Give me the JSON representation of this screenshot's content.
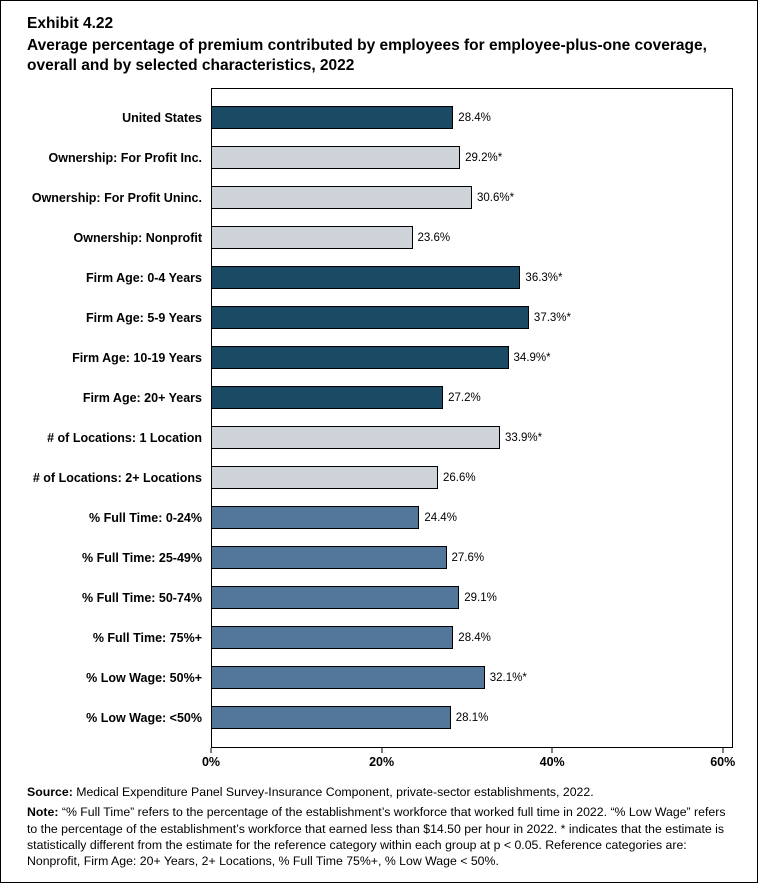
{
  "header": {
    "exhibit": "Exhibit 4.22",
    "title": "Average percentage of premium contributed by employees for employee-plus-one coverage, overall and by selected characteristics, 2022"
  },
  "chart_data": {
    "type": "bar",
    "orientation": "horizontal",
    "title": "Average percentage of premium contributed by employees for employee-plus-one coverage, overall and by selected characteristics, 2022",
    "grid": false,
    "xlim": [
      0,
      61.2
    ],
    "x_ticks": [
      {
        "value": 0,
        "label": "0%"
      },
      {
        "value": 20,
        "label": "20%"
      },
      {
        "value": 40,
        "label": "40%"
      },
      {
        "value": 60,
        "label": "60%"
      }
    ],
    "categories": [
      "United States",
      "Ownership: For Profit Inc.",
      "Ownership: For Profit Uninc.",
      "Ownership: Nonprofit",
      "Firm Age: 0-4 Years",
      "Firm Age: 5-9 Years",
      "Firm Age: 10-19 Years",
      "Firm Age: 20+ Years",
      "# of Locations: 1 Location",
      "# of Locations: 2+ Locations",
      "% Full Time: 0-24%",
      "% Full Time: 25-49%",
      "% Full Time: 50-74%",
      "% Full Time: 75%+",
      "% Low Wage: 50%+",
      "% Low Wage: <50%"
    ],
    "values": [
      28.4,
      29.2,
      30.6,
      23.6,
      36.3,
      37.3,
      34.9,
      27.2,
      33.9,
      26.6,
      24.4,
      27.6,
      29.1,
      28.4,
      32.1,
      28.1
    ],
    "value_labels": [
      "28.4%",
      "29.2%*",
      "30.6%*",
      "23.6%",
      "36.3%*",
      "37.3%*",
      "34.9%*",
      "27.2%",
      "33.9%*",
      "26.6%",
      "24.4%",
      "27.6%",
      "29.1%",
      "28.4%",
      "32.1%*",
      "28.1%"
    ],
    "bar_color_keys": [
      "navy",
      "gray",
      "gray",
      "gray",
      "navy",
      "navy",
      "navy",
      "navy",
      "gray",
      "gray",
      "blue",
      "blue",
      "blue",
      "blue",
      "blue",
      "blue"
    ],
    "palette": {
      "navy": "#1b4a64",
      "gray": "#cdd3d9",
      "blue": "#53779a"
    }
  },
  "footer": {
    "source_label": "Source:",
    "source_text": "Medical Expenditure Panel Survey-Insurance Component, private-sector establishments, 2022.",
    "note_label": "Note:",
    "note_text": "“% Full Time” refers to the percentage of the establishment’s workforce that worked full time in 2022. “% Low Wage” refers to the percentage of the establishment’s workforce that earned less than $14.50 per hour in 2022. * indicates that the estimate is statistically different from the estimate for the reference category within each group at p < 0.05.  Reference categories are: Nonprofit, Firm Age: 20+ Years, 2+ Locations, % Full Time 75%+, % Low Wage < 50%."
  }
}
